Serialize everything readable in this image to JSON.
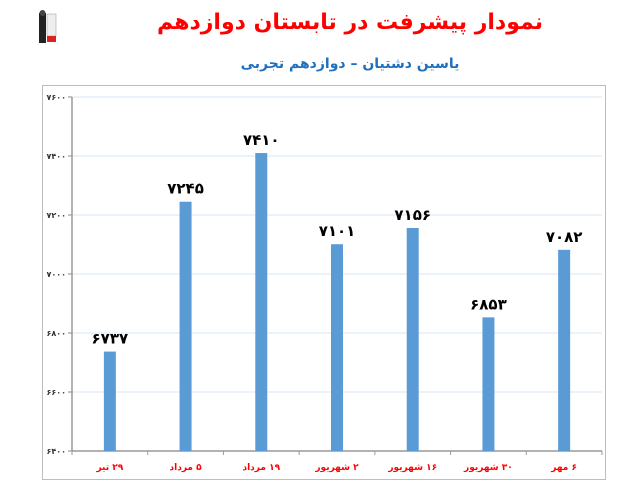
{
  "chart_data": {
    "type": "bar",
    "title": "نمودار پیشرفت در تابستان دوازدهم",
    "subtitle": "یاسین دشتیان – دوازدهم تجربی",
    "categories": [
      "۲۹ تیر",
      "۵ مرداد",
      "۱۹ مرداد",
      "۲ شهریور",
      "۱۶ شهریور",
      "۳۰ شهریور",
      "۶ مهر"
    ],
    "values": [
      6737,
      7245,
      7410,
      7101,
      7156,
      6853,
      7082
    ],
    "ylim": [
      6400,
      7600
    ],
    "yticks": [
      6400,
      6600,
      6800,
      7000,
      7200,
      7400,
      7600
    ],
    "grid": true,
    "legend": "none",
    "colors": {
      "bar": "#5b9bd5",
      "category_label": "#ff0000",
      "title": "#ff0000",
      "subtitle": "#1f6fbf",
      "data_label": "#000000",
      "grid": "#d9e6f5"
    }
  }
}
